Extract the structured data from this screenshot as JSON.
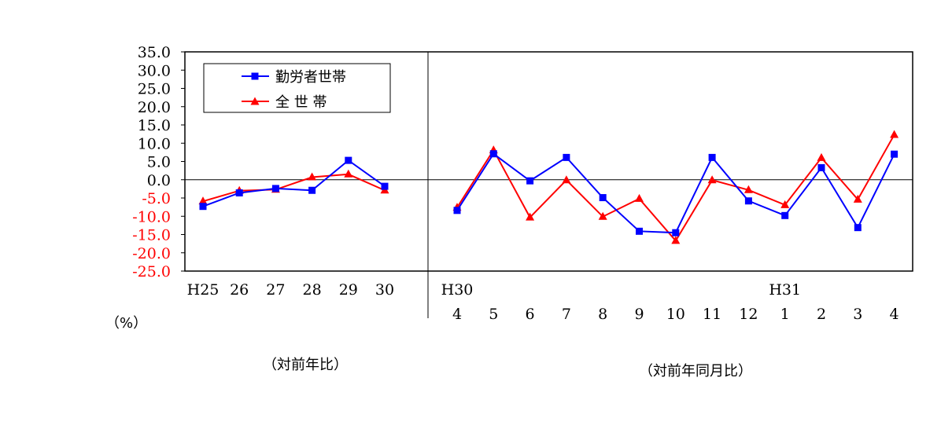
{
  "chart_data": {
    "type": "line",
    "ylabel": "（%）",
    "ylim": [
      -25,
      35
    ],
    "yticks": [
      "35.0",
      "30.0",
      "25.0",
      "20.0",
      "15.0",
      "10.0",
      "5.0",
      "0.0",
      "-5.0",
      "-10.0",
      "-15.0",
      "-20.0",
      "-25.0"
    ],
    "positive_tick_color": "#000000",
    "negative_tick_color": "#ff0000",
    "legend_placement": "top-left",
    "series_colors": {
      "workers": "#0000ff",
      "all": "#ff0000"
    },
    "legend": [
      "勤労者世帯",
      "全 世 帯"
    ],
    "annual": {
      "caption": "（対前年比）",
      "categories": [
        "H25",
        "26",
        "27",
        "28",
        "29",
        "30"
      ],
      "series": [
        {
          "name": "勤労者世帯",
          "marker": "square",
          "values": [
            -7.3,
            -3.6,
            -2.4,
            -2.9,
            5.3,
            -1.8
          ]
        },
        {
          "name": "全 世 帯",
          "marker": "triangle",
          "values": [
            -5.9,
            -3.0,
            -2.7,
            0.7,
            1.5,
            -2.9
          ]
        }
      ]
    },
    "monthly": {
      "caption": "（対前年同月比）",
      "year_labels": [
        {
          "index": 0,
          "label": "H30"
        },
        {
          "index": 9,
          "label": "H31"
        }
      ],
      "categories": [
        "4",
        "5",
        "6",
        "7",
        "8",
        "9",
        "10",
        "11",
        "12",
        "1",
        "2",
        "3",
        "4"
      ],
      "series": [
        {
          "name": "勤労者世帯",
          "marker": "square",
          "values": [
            -8.4,
            7.1,
            -0.3,
            6.1,
            -4.9,
            -14.1,
            -14.5,
            6.1,
            -5.8,
            -9.8,
            3.3,
            -13.1,
            7.0
          ]
        },
        {
          "name": "全 世 帯",
          "marker": "triangle",
          "values": [
            -7.6,
            8.1,
            -10.3,
            -0.1,
            -10.1,
            -5.2,
            -16.7,
            -0.1,
            -2.8,
            -6.9,
            6.0,
            -5.4,
            12.3
          ]
        }
      ]
    }
  }
}
